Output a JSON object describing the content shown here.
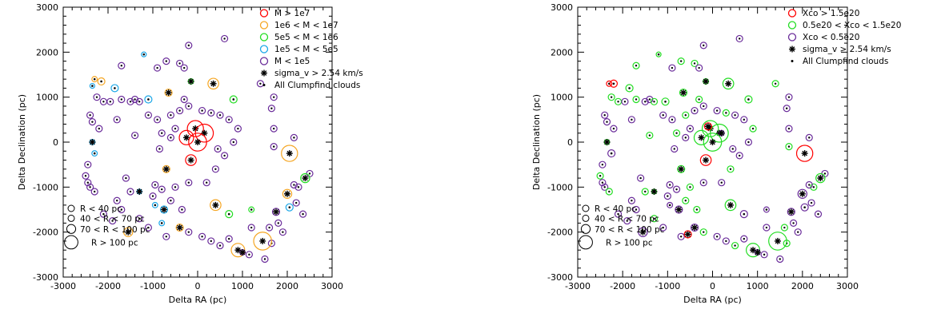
{
  "chart_data": [
    {
      "type": "scatter",
      "xlabel": "Delta RA (pc)",
      "ylabel": "Delta Declination (pc)",
      "xlim": [
        -3000,
        3000
      ],
      "ylim": [
        -3000,
        3000
      ],
      "xticks": [
        "-3000",
        "-2000",
        "-1000",
        "0",
        "1000",
        "2000",
        "3000"
      ],
      "yticks": [
        "-3000",
        "-2000",
        "-1000",
        "0",
        "1000",
        "2000",
        "3000"
      ],
      "grid": false,
      "legend_position": "top-right",
      "colors": {
        "red": "#ff0000",
        "orange": "#f5a623",
        "green": "#22dd22",
        "cyan": "#1aa7e8",
        "purple": "#6a2c9a",
        "black": "#000000"
      },
      "legend": [
        {
          "label": "M > 1e7",
          "color": "#ff0000",
          "marker": "circle"
        },
        {
          "label": "1e6 < M < 1e7",
          "color": "#f5a623",
          "marker": "circle"
        },
        {
          "label": "5e5 < M < 1e6",
          "color": "#22dd22",
          "marker": "circle"
        },
        {
          "label": "1e5 < M < 5e5",
          "color": "#1aa7e8",
          "marker": "circle"
        },
        {
          "label": "M < 1e5",
          "color": "#6a2c9a",
          "marker": "circle"
        },
        {
          "label": "sigma_v > 2.54 km/s",
          "color": "#000000",
          "marker": "star"
        },
        {
          "label": "All Clumpfind clouds",
          "color": "#000000",
          "marker": "dot"
        }
      ],
      "size_legend": [
        {
          "label": "R < 40 pc",
          "radius": 40
        },
        {
          "label": "40 < R < 70 pc",
          "radius": 70
        },
        {
          "label": "70 < R < 100 pc",
          "radius": 100
        },
        {
          "label": "R > 100 pc",
          "radius": 150
        }
      ],
      "clouds": [
        {
          "x": -2300,
          "y": 1400,
          "r": 60,
          "c": "orange",
          "s": 0
        },
        {
          "x": -2150,
          "y": 1350,
          "r": 80,
          "c": "orange",
          "s": 0
        },
        {
          "x": -1850,
          "y": 1200,
          "r": 80,
          "c": "cyan",
          "s": 0
        },
        {
          "x": -2350,
          "y": 1250,
          "r": 30,
          "c": "cyan",
          "s": 0
        },
        {
          "x": -1200,
          "y": 1950,
          "r": 30,
          "c": "cyan",
          "s": 0
        },
        {
          "x": -1100,
          "y": 950,
          "r": 80,
          "c": "cyan",
          "s": 0
        },
        {
          "x": -650,
          "y": 1100,
          "r": 80,
          "c": "orange",
          "s": 1
        },
        {
          "x": -150,
          "y": 1350,
          "r": 60,
          "c": "green",
          "s": 1
        },
        {
          "x": 350,
          "y": 1300,
          "r": 120,
          "c": "orange",
          "s": 1
        },
        {
          "x": 800,
          "y": 950,
          "r": 80,
          "c": "green",
          "s": 0
        },
        {
          "x": -50,
          "y": 300,
          "r": 180,
          "c": "red",
          "s": 1
        },
        {
          "x": 150,
          "y": 200,
          "r": 200,
          "c": "red",
          "s": 1
        },
        {
          "x": -250,
          "y": 100,
          "r": 160,
          "c": "red",
          "s": 1
        },
        {
          "x": 0,
          "y": 0,
          "r": 200,
          "c": "red",
          "s": 1
        },
        {
          "x": -150,
          "y": -400,
          "r": 120,
          "c": "red",
          "s": 1
        },
        {
          "x": -700,
          "y": -600,
          "r": 80,
          "c": "orange",
          "s": 1
        },
        {
          "x": -2350,
          "y": 0,
          "r": 60,
          "c": "cyan",
          "s": 1
        },
        {
          "x": -2300,
          "y": -250,
          "r": 60,
          "c": "cyan",
          "s": 0
        },
        {
          "x": 2050,
          "y": -250,
          "r": 180,
          "c": "orange",
          "s": 1
        },
        {
          "x": 2400,
          "y": -800,
          "r": 100,
          "c": "green",
          "s": 1
        },
        {
          "x": 2000,
          "y": -1150,
          "r": 100,
          "c": "orange",
          "s": 1
        },
        {
          "x": 2050,
          "y": -1450,
          "r": 80,
          "c": "cyan",
          "s": 0
        },
        {
          "x": 1750,
          "y": -1550,
          "r": 80,
          "c": "purple",
          "s": 1
        },
        {
          "x": 1200,
          "y": -1500,
          "r": 60,
          "c": "green",
          "s": 0
        },
        {
          "x": 700,
          "y": -1600,
          "r": 80,
          "c": "green",
          "s": 0
        },
        {
          "x": 400,
          "y": -1400,
          "r": 120,
          "c": "orange",
          "s": 1
        },
        {
          "x": -950,
          "y": -1400,
          "r": 60,
          "c": "cyan",
          "s": 0
        },
        {
          "x": -750,
          "y": -1500,
          "r": 80,
          "c": "cyan",
          "s": 1
        },
        {
          "x": -400,
          "y": -1900,
          "r": 80,
          "c": "orange",
          "s": 1
        },
        {
          "x": -800,
          "y": -1800,
          "r": 60,
          "c": "cyan",
          "s": 0
        },
        {
          "x": -1550,
          "y": -2000,
          "r": 100,
          "c": "orange",
          "s": 1
        },
        {
          "x": 900,
          "y": -2400,
          "r": 150,
          "c": "orange",
          "s": 1
        },
        {
          "x": 1450,
          "y": -2200,
          "r": 200,
          "c": "orange",
          "s": 1
        },
        {
          "x": 1000,
          "y": -2450,
          "r": 60,
          "c": "purple",
          "s": 1
        },
        {
          "x": -1300,
          "y": -1100,
          "r": 25,
          "c": "cyan",
          "s": 1
        }
      ]
    },
    {
      "type": "scatter",
      "xlabel": "Delta RA (pc)",
      "ylabel": "Delta Declination (pc)",
      "xlim": [
        -3000,
        3000
      ],
      "ylim": [
        -3000,
        3000
      ],
      "xticks": [
        "-3000",
        "-2000",
        "-1000",
        "0",
        "1000",
        "2000",
        "3000"
      ],
      "yticks": [
        "-3000",
        "-2000",
        "-1000",
        "0",
        "1000",
        "2000",
        "3000"
      ],
      "grid": false,
      "legend_position": "top-right",
      "legend": [
        {
          "label": "Xco > 1.5e20",
          "color": "#ff0000",
          "marker": "circle"
        },
        {
          "label": "0.5e20 < Xco < 1.5e20",
          "color": "#22dd22",
          "marker": "circle"
        },
        {
          "label": "Xco < 0.5e20",
          "color": "#6a2c9a",
          "marker": "circle"
        },
        {
          "label": "sigma_v > 2.54 km/s",
          "color": "#000000",
          "marker": "star"
        },
        {
          "label": "All Clumpfind clouds",
          "color": "#000000",
          "marker": "dot"
        }
      ],
      "size_legend": [
        {
          "label": "R < 40 pc",
          "radius": 40
        },
        {
          "label": "40 < R < 70 pc",
          "radius": 70
        },
        {
          "label": "70 < R < 100 pc",
          "radius": 100
        },
        {
          "label": "R > 100 pc",
          "radius": 150
        }
      ],
      "clouds": [
        {
          "x": -2300,
          "y": 1300,
          "r": 60,
          "c": "red",
          "s": 0
        },
        {
          "x": -2200,
          "y": 1300,
          "r": 80,
          "c": "red",
          "s": 0
        },
        {
          "x": -1850,
          "y": 1200,
          "r": 80,
          "c": "green",
          "s": 0
        },
        {
          "x": -1200,
          "y": 1950,
          "r": 30,
          "c": "green",
          "s": 0
        },
        {
          "x": -1050,
          "y": 900,
          "r": 80,
          "c": "green",
          "s": 0
        },
        {
          "x": -650,
          "y": 1100,
          "r": 80,
          "c": "green",
          "s": 1
        },
        {
          "x": -150,
          "y": 1350,
          "r": 60,
          "c": "green",
          "s": 1
        },
        {
          "x": 350,
          "y": 1300,
          "r": 120,
          "c": "green",
          "s": 1
        },
        {
          "x": 800,
          "y": 950,
          "r": 80,
          "c": "green",
          "s": 0
        },
        {
          "x": -50,
          "y": 300,
          "r": 180,
          "c": "green",
          "s": 1
        },
        {
          "x": 150,
          "y": 200,
          "r": 200,
          "c": "green",
          "s": 1
        },
        {
          "x": -250,
          "y": 100,
          "r": 160,
          "c": "green",
          "s": 1
        },
        {
          "x": 0,
          "y": 0,
          "r": 200,
          "c": "green",
          "s": 1
        },
        {
          "x": -100,
          "y": 350,
          "r": 80,
          "c": "red",
          "s": 1
        },
        {
          "x": 200,
          "y": 200,
          "r": 60,
          "c": "purple",
          "s": 1
        },
        {
          "x": -150,
          "y": -400,
          "r": 120,
          "c": "red",
          "s": 1
        },
        {
          "x": -700,
          "y": -600,
          "r": 80,
          "c": "green",
          "s": 1
        },
        {
          "x": -2350,
          "y": 0,
          "r": 60,
          "c": "green",
          "s": 1
        },
        {
          "x": -2250,
          "y": -250,
          "r": 80,
          "c": "purple",
          "s": 0
        },
        {
          "x": 2050,
          "y": -250,
          "r": 180,
          "c": "red",
          "s": 1
        },
        {
          "x": 2400,
          "y": -800,
          "r": 100,
          "c": "green",
          "s": 1
        },
        {
          "x": 2000,
          "y": -1150,
          "r": 100,
          "c": "purple",
          "s": 1
        },
        {
          "x": 2050,
          "y": -1450,
          "r": 80,
          "c": "purple",
          "s": 0
        },
        {
          "x": 1750,
          "y": -1550,
          "r": 80,
          "c": "purple",
          "s": 1
        },
        {
          "x": 1200,
          "y": -1500,
          "r": 60,
          "c": "purple",
          "s": 0
        },
        {
          "x": 700,
          "y": -1600,
          "r": 80,
          "c": "purple",
          "s": 0
        },
        {
          "x": 400,
          "y": -1400,
          "r": 120,
          "c": "green",
          "s": 1
        },
        {
          "x": -950,
          "y": -1400,
          "r": 60,
          "c": "purple",
          "s": 0
        },
        {
          "x": -750,
          "y": -1500,
          "r": 80,
          "c": "purple",
          "s": 1
        },
        {
          "x": -400,
          "y": -1900,
          "r": 80,
          "c": "purple",
          "s": 1
        },
        {
          "x": -550,
          "y": -2050,
          "r": 80,
          "c": "red",
          "s": 1
        },
        {
          "x": -1550,
          "y": -2000,
          "r": 100,
          "c": "purple",
          "s": 1
        },
        {
          "x": 900,
          "y": -2400,
          "r": 150,
          "c": "green",
          "s": 1
        },
        {
          "x": 1450,
          "y": -2200,
          "r": 200,
          "c": "green",
          "s": 1
        },
        {
          "x": 1000,
          "y": -2450,
          "r": 60,
          "c": "purple",
          "s": 1
        },
        {
          "x": -1300,
          "y": -1100,
          "r": 25,
          "c": "green",
          "s": 1
        }
      ]
    }
  ],
  "small_clouds": [
    [
      -2250,
      1000
    ],
    [
      -2400,
      600
    ],
    [
      -2350,
      450
    ],
    [
      -2100,
      900
    ],
    [
      -1950,
      900
    ],
    [
      -1800,
      500
    ],
    [
      -1700,
      950
    ],
    [
      -1500,
      900
    ],
    [
      -1400,
      950
    ],
    [
      -1300,
      900
    ],
    [
      -1100,
      600
    ],
    [
      -900,
      500
    ],
    [
      -600,
      600
    ],
    [
      -500,
      300
    ],
    [
      -400,
      700
    ],
    [
      -300,
      950
    ],
    [
      -200,
      800
    ],
    [
      100,
      700
    ],
    [
      300,
      650
    ],
    [
      500,
      600
    ],
    [
      700,
      500
    ],
    [
      900,
      300
    ],
    [
      800,
      0
    ],
    [
      600,
      -300
    ],
    [
      400,
      -600
    ],
    [
      200,
      -900
    ],
    [
      -200,
      -900
    ],
    [
      -500,
      -1000
    ],
    [
      -800,
      -1050
    ],
    [
      -1000,
      -1200
    ],
    [
      -1500,
      -1100
    ],
    [
      -1800,
      -1300
    ],
    [
      -2450,
      -500
    ],
    [
      -2500,
      -750
    ],
    [
      -2450,
      -900
    ],
    [
      -2400,
      -1000
    ],
    [
      -2300,
      -1100
    ],
    [
      -2100,
      -1600
    ],
    [
      -1900,
      -1750
    ],
    [
      -1300,
      -1700
    ],
    [
      -1100,
      -1900
    ],
    [
      -700,
      -2100
    ],
    [
      -200,
      -2000
    ],
    [
      100,
      -2100
    ],
    [
      300,
      -2200
    ],
    [
      500,
      -2300
    ],
    [
      700,
      -2150
    ],
    [
      1150,
      -2500
    ],
    [
      1600,
      -1900
    ],
    [
      1800,
      -1800
    ],
    [
      2200,
      -1350
    ],
    [
      2250,
      -1000
    ],
    [
      2150,
      -950
    ],
    [
      2500,
      -700
    ],
    [
      1700,
      -100
    ],
    [
      1700,
      300
    ],
    [
      1650,
      750
    ],
    [
      1400,
      1300
    ],
    [
      1700,
      1000
    ],
    [
      -200,
      2150
    ],
    [
      -400,
      1750
    ],
    [
      -300,
      1650
    ],
    [
      -900,
      1650
    ],
    [
      -700,
      1800
    ],
    [
      600,
      2300
    ],
    [
      2150,
      100
    ],
    [
      -1700,
      1700
    ],
    [
      1500,
      -2600
    ],
    [
      1200,
      -1900
    ],
    [
      1650,
      -2250
    ],
    [
      1900,
      -2000
    ],
    [
      2350,
      -1600
    ],
    [
      -600,
      -1300
    ],
    [
      -950,
      -950
    ],
    [
      -600,
      100
    ],
    [
      -800,
      200
    ],
    [
      -850,
      -150
    ],
    [
      450,
      -150
    ],
    [
      -350,
      -1500
    ],
    [
      -1700,
      -1500
    ],
    [
      -2200,
      300
    ],
    [
      -1400,
      150
    ],
    [
      -1600,
      -800
    ]
  ]
}
